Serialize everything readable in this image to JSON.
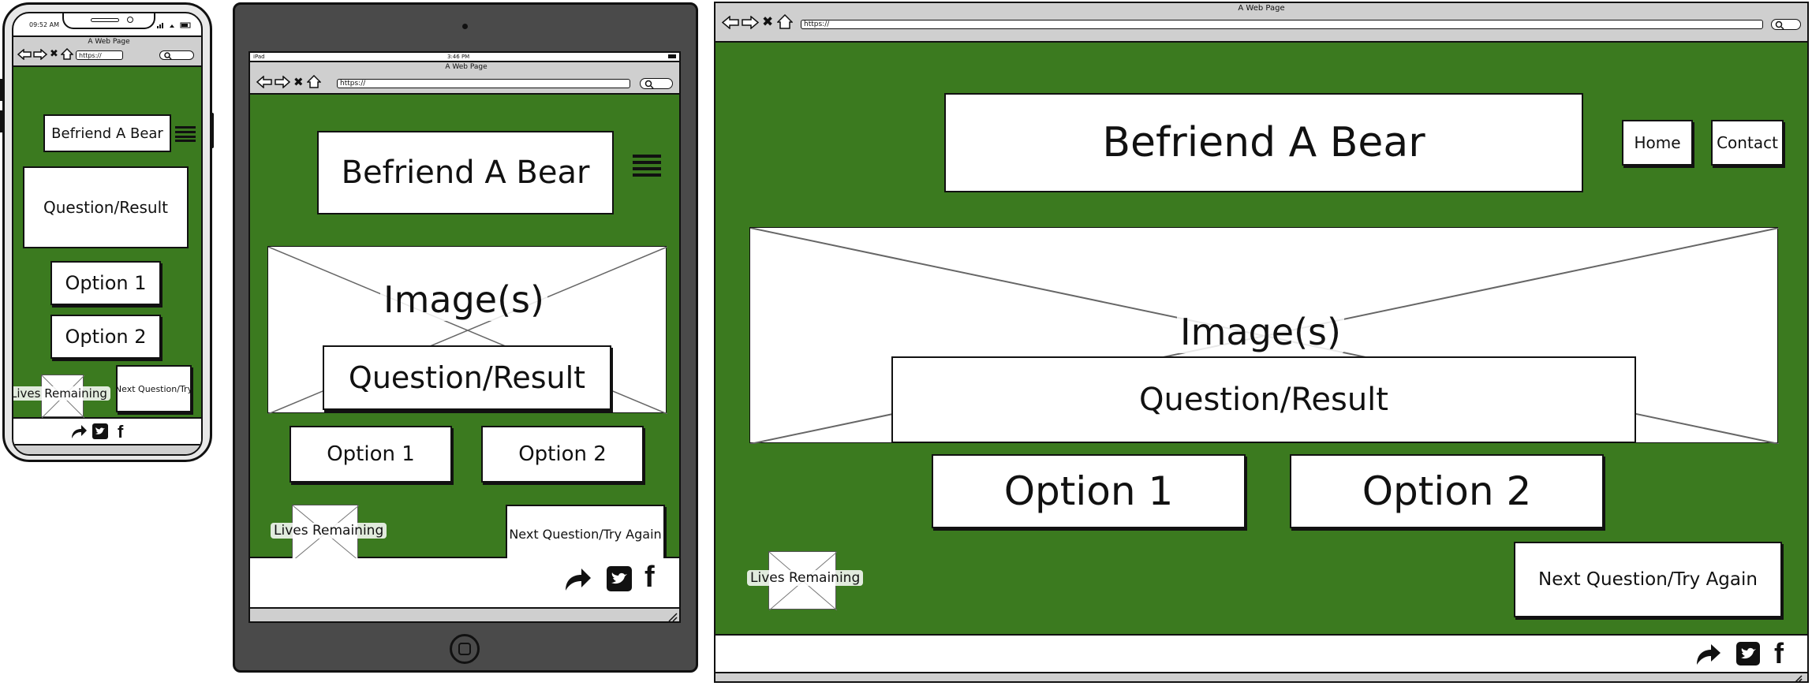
{
  "phone": {
    "time": "09:52 AM",
    "page_title": "A Web Page",
    "url": "https://",
    "site_title": "Befriend A Bear",
    "question": "Question/Result",
    "option1": "Option 1",
    "option2": "Option 2",
    "lives": "Lives Remaining",
    "next": "Next Question/Try"
  },
  "tablet": {
    "device": "iPad",
    "time": "3:46 PM",
    "page_title": "A Web Page",
    "url": "https://",
    "site_title": "Befriend A Bear",
    "image_label": "Image(s)",
    "question": "Question/Result",
    "option1": "Option 1",
    "option2": "Option 2",
    "lives": "Lives Remaining",
    "next": "Next Question/Try Again"
  },
  "desktop": {
    "page_title": "A Web Page",
    "url": "https://",
    "site_title": "Befriend A Bear",
    "nav": [
      "Home",
      "Contact"
    ],
    "image_label": "Image(s)",
    "question": "Question/Result",
    "option1": "Option 1",
    "option2": "Option 2",
    "lives": "Lives Remaining",
    "next": "Next Question/Try Again"
  },
  "colors": {
    "page_green": "#3b7a1f",
    "device_dark": "#4a4a4a",
    "chrome_grey": "#cfcfcf"
  },
  "icons": [
    "back-arrow-icon",
    "forward-arrow-icon",
    "stop-icon",
    "home-icon",
    "search-icon",
    "hamburger-menu-icon",
    "share-icon",
    "twitter-icon",
    "facebook-icon",
    "resize-grip-icon",
    "home-button-icon",
    "image-placeholder-icon"
  ]
}
